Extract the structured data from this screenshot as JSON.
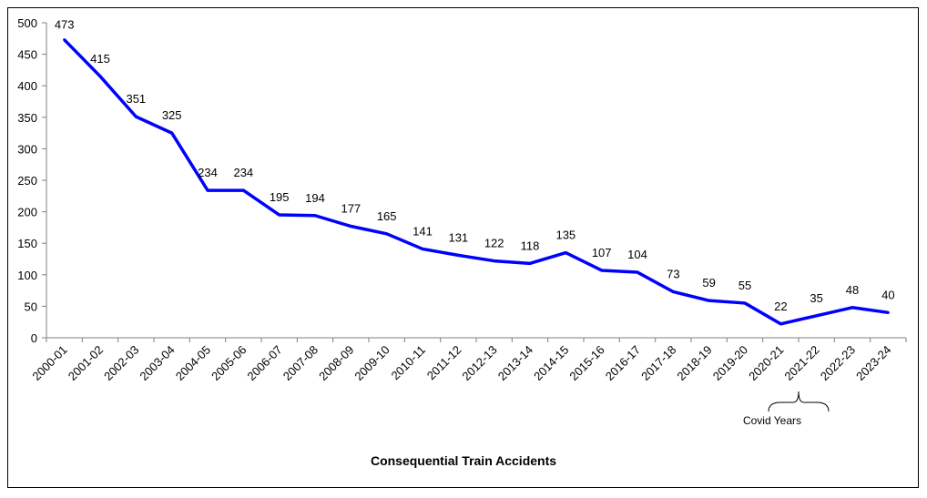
{
  "chart_data": {
    "type": "line",
    "title": "",
    "xlabel": "Consequential Train Accidents",
    "ylabel": "",
    "ylim": [
      0,
      500
    ],
    "yticks": [
      0,
      50,
      100,
      150,
      200,
      250,
      300,
      350,
      400,
      450,
      500
    ],
    "grid": false,
    "legend": "none",
    "line_color": "#0000FF",
    "categories": [
      "2000-01",
      "2001-02",
      "2002-03",
      "2003-04",
      "2004-05",
      "2005-06",
      "2006-07",
      "2007-08",
      "2008-09",
      "2009-10",
      "2010-11",
      "2011-12",
      "2012-13",
      "2013-14",
      "2014-15",
      "2015-16",
      "2016-17",
      "2017-18",
      "2018-19",
      "2019-20",
      "2020-21",
      "2021-22",
      "2022-23",
      "2023-24"
    ],
    "values": [
      473,
      415,
      351,
      325,
      234,
      234,
      195,
      194,
      177,
      165,
      141,
      131,
      122,
      118,
      135,
      107,
      104,
      73,
      59,
      55,
      22,
      35,
      48,
      40
    ],
    "annotation": {
      "text": "Covid Years",
      "spans": [
        "2020-21",
        "2021-22"
      ]
    }
  }
}
